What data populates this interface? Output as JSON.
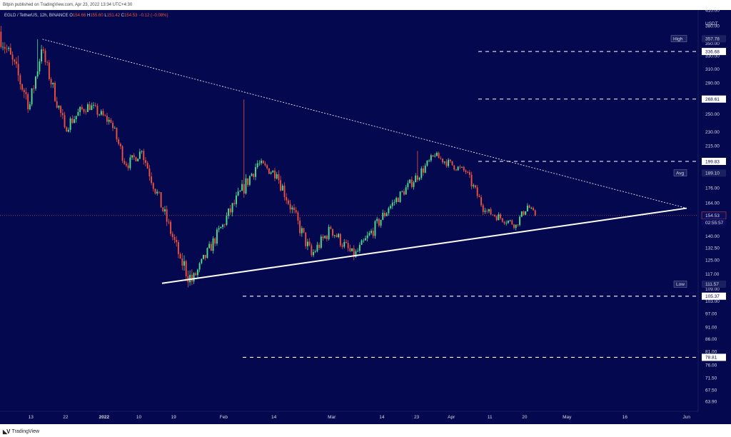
{
  "header": {
    "publisher": "Bitpin published on TradingView.com, Apr 23, 2022 13:34 UTC+4:30"
  },
  "footer": {
    "brand": "TradingView"
  },
  "colors": {
    "background": "#04084f",
    "up": "#4fe08a",
    "down": "#f0503c",
    "trendline": "#ffffff",
    "text": "#d6d9e6"
  },
  "chart_data": {
    "type": "candlestick",
    "symbol_line": {
      "symbol": "EGLD / TetherUS, 12h, BINANCE",
      "o_label": "O",
      "o": "154.66",
      "h_label": "H",
      "h": "155.60",
      "l_label": "L",
      "l": "151.42",
      "c_label": "C",
      "c": "154.53",
      "change": "−0.12 (−0.08%)"
    },
    "y_scale": "log",
    "ylim": [
      61,
      410
    ],
    "xlim": [
      "2021-12-05",
      "2022-06-04"
    ],
    "unit_label": "USDT",
    "y_ticks": [
      "410.00",
      "380.00",
      "350.00",
      "330.00",
      "310.00",
      "290.00",
      "270.00",
      "250.00",
      "230.00",
      "215.00",
      "176.00",
      "164.00",
      "140.00",
      "132.50",
      "125.00",
      "117.00",
      "109.00",
      "103.00",
      "97.00",
      "91.00",
      "86.00",
      "81.00",
      "76.00",
      "71.50",
      "67.50",
      "63.90"
    ],
    "x_ticks": [
      {
        "date": "2021-12-13",
        "label": "13"
      },
      {
        "date": "2021-12-22",
        "label": "22"
      },
      {
        "date": "2022-01-01",
        "label": "2022"
      },
      {
        "date": "2022-01-10",
        "label": "10"
      },
      {
        "date": "2022-01-19",
        "label": "19"
      },
      {
        "date": "2022-02-01",
        "label": "Feb"
      },
      {
        "date": "2022-02-14",
        "label": "14"
      },
      {
        "date": "2022-03-01",
        "label": "Mar"
      },
      {
        "date": "2022-03-14",
        "label": "14"
      },
      {
        "date": "2022-03-23",
        "label": "23"
      },
      {
        "date": "2022-04-01",
        "label": "Apr"
      },
      {
        "date": "2022-04-11",
        "label": "11"
      },
      {
        "date": "2022-04-20",
        "label": "20"
      },
      {
        "date": "2022-05-01",
        "label": "May"
      },
      {
        "date": "2022-05-16",
        "label": "16"
      },
      {
        "date": "2022-06-01",
        "label": "Jun"
      }
    ],
    "price_levels": [
      {
        "value": 357.78,
        "label": "357.78",
        "tag": "High"
      },
      {
        "value": 336.68,
        "label": "336.68",
        "dashed": true
      },
      {
        "value": 268.61,
        "label": "268.61",
        "dashed": true
      },
      {
        "value": 199.83,
        "label": "199.83",
        "dashed": true
      },
      {
        "value": 189.1,
        "label": "189.10",
        "tag": "Avg"
      },
      {
        "value": 154.53,
        "label": "154.53",
        "sub": "02:55:57",
        "current": true
      },
      {
        "value": 111.57,
        "label": "111.57",
        "tag": "Low"
      },
      {
        "value": 105.37,
        "label": "105.37",
        "dashed": true
      },
      {
        "value": 78.81,
        "label": "78.81",
        "dashed": true
      }
    ],
    "trendlines": [
      {
        "style": "dotted",
        "from": {
          "date": "2021-12-16",
          "value": 357
        },
        "to": {
          "date": "2022-06-01",
          "value": 160
        }
      },
      {
        "style": "solid",
        "from": {
          "date": "2022-01-16",
          "value": 112
        },
        "to": {
          "date": "2022-06-01",
          "value": 160
        }
      }
    ],
    "segments": [
      {
        "start": "2021-12-05",
        "end": "2021-12-13",
        "v0": 370,
        "v1": 262,
        "vol": 0.05,
        "spike": 330
      },
      {
        "start": "2021-12-13",
        "end": "2021-12-16",
        "v0": 262,
        "v1": 340,
        "vol": 0.04,
        "spike": 357
      },
      {
        "start": "2021-12-16",
        "end": "2021-12-22",
        "v0": 340,
        "v1": 235,
        "vol": 0.035
      },
      {
        "start": "2021-12-22",
        "end": "2021-12-28",
        "v0": 235,
        "v1": 262,
        "vol": 0.03
      },
      {
        "start": "2021-12-28",
        "end": "2022-01-03",
        "v0": 262,
        "v1": 240,
        "vol": 0.025
      },
      {
        "start": "2022-01-03",
        "end": "2022-01-07",
        "v0": 240,
        "v1": 196,
        "vol": 0.03
      },
      {
        "start": "2022-01-07",
        "end": "2022-01-11",
        "v0": 196,
        "v1": 210,
        "vol": 0.025
      },
      {
        "start": "2022-01-11",
        "end": "2022-01-21",
        "v0": 210,
        "v1": 126,
        "vol": 0.035
      },
      {
        "start": "2022-01-21",
        "end": "2022-01-24",
        "v0": 126,
        "v1": 113,
        "vol": 0.05,
        "spike": 111.6
      },
      {
        "start": "2022-01-24",
        "end": "2022-02-01",
        "v0": 113,
        "v1": 148,
        "vol": 0.03
      },
      {
        "start": "2022-02-01",
        "end": "2022-02-10",
        "v0": 148,
        "v1": 198,
        "vol": 0.035,
        "spike": 268
      },
      {
        "start": "2022-02-10",
        "end": "2022-02-15",
        "v0": 198,
        "v1": 188,
        "vol": 0.025
      },
      {
        "start": "2022-02-15",
        "end": "2022-02-24",
        "v0": 188,
        "v1": 128,
        "vol": 0.035
      },
      {
        "start": "2022-02-24",
        "end": "2022-03-01",
        "v0": 128,
        "v1": 145,
        "vol": 0.03
      },
      {
        "start": "2022-03-01",
        "end": "2022-03-07",
        "v0": 145,
        "v1": 127,
        "vol": 0.03
      },
      {
        "start": "2022-03-07",
        "end": "2022-03-16",
        "v0": 127,
        "v1": 160,
        "vol": 0.03
      },
      {
        "start": "2022-03-16",
        "end": "2022-03-28",
        "v0": 160,
        "v1": 205,
        "vol": 0.025,
        "spike": 210
      },
      {
        "start": "2022-03-28",
        "end": "2022-04-05",
        "v0": 205,
        "v1": 190,
        "vol": 0.02
      },
      {
        "start": "2022-04-05",
        "end": "2022-04-10",
        "v0": 190,
        "v1": 158,
        "vol": 0.025
      },
      {
        "start": "2022-04-10",
        "end": "2022-04-18",
        "v0": 158,
        "v1": 148,
        "vol": 0.02
      },
      {
        "start": "2022-04-18",
        "end": "2022-04-21",
        "v0": 148,
        "v1": 162,
        "vol": 0.02
      },
      {
        "start": "2022-04-21",
        "end": "2022-04-23",
        "v0": 162,
        "v1": 154.5,
        "vol": 0.015
      }
    ]
  }
}
